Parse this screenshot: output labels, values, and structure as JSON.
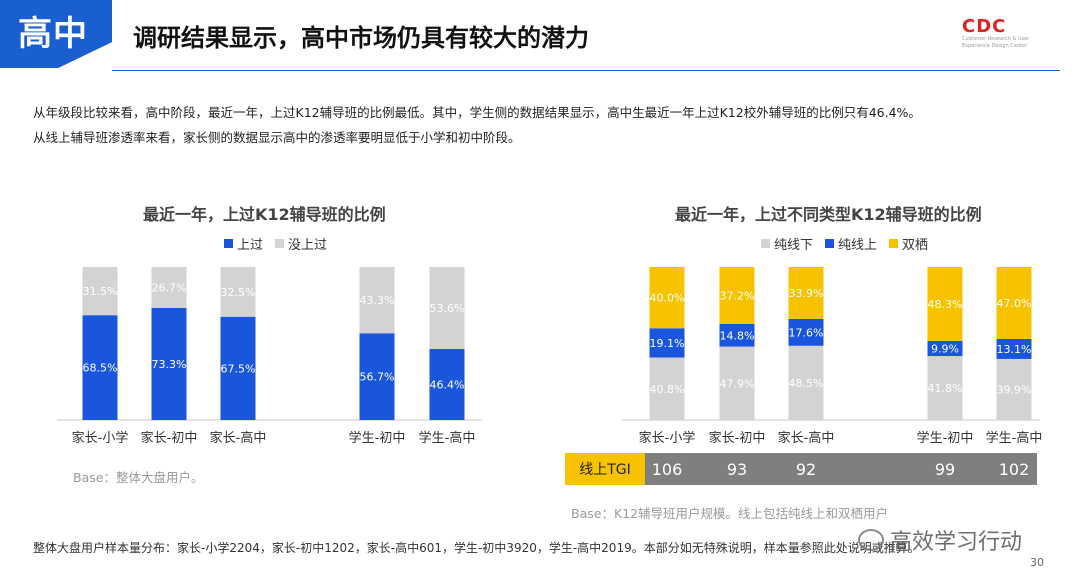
{
  "header": {
    "badge": "高中",
    "title": "调研结果显示，高中市场仍具有较大的潜力",
    "logo_text": "CDC",
    "logo_sub": "Customer Research & User Experience Design Center"
  },
  "intro": {
    "line1": "从年级段比较来看，高中阶段，最近一年，上过K12辅导班的比例最低。其中，学生侧的数据结果显示，高中生最近一年上过K12校外辅导班的比例只有46.4%。",
    "line2": "从线上辅导班渗透率来看，家长侧的数据显示高中的渗透率要明显低于小学和初中阶段。"
  },
  "chart_data": [
    {
      "type": "bar",
      "stacked": true,
      "title": "最近一年，上过K12辅导班的比例",
      "categories": [
        "家长-小学",
        "家长-初中",
        "家长-高中",
        "学生-初中",
        "学生-高中"
      ],
      "series": [
        {
          "name": "上过",
          "color": "#1a56db",
          "values": [
            68.5,
            73.3,
            67.5,
            56.7,
            46.4
          ],
          "labels": [
            "68.5%",
            "73.3%",
            "67.5%",
            "56.7%",
            "46.4%"
          ]
        },
        {
          "name": "没上过",
          "color": "#d3d3d3",
          "values": [
            31.5,
            26.7,
            32.5,
            43.3,
            53.6
          ],
          "labels": [
            "31.5%",
            "26.7%",
            "32.5%",
            "43.3%",
            "53.6%"
          ]
        }
      ],
      "legend_position": "top",
      "grid": false,
      "base_note": "Base：整体大盘用户。"
    },
    {
      "type": "bar",
      "stacked": true,
      "title": "最近一年，上过不同类型K12辅导班的比例",
      "categories": [
        "家长-小学",
        "家长-初中",
        "家长-高中",
        "学生-初中",
        "学生-高中"
      ],
      "series": [
        {
          "name": "纯线下",
          "color": "#d3d3d3",
          "values": [
            40.8,
            47.9,
            48.5,
            41.8,
            39.9
          ],
          "labels": [
            "40.8%",
            "47.9%",
            "48.5%",
            "41.8%",
            "39.9%"
          ]
        },
        {
          "name": "纯线上",
          "color": "#1a56db",
          "values": [
            19.1,
            14.8,
            17.6,
            9.9,
            13.1
          ],
          "labels": [
            "19.1%",
            "14.8%",
            "17.6%",
            "9.9%",
            "13.1%"
          ]
        },
        {
          "name": "双栖",
          "color": "#f7c200",
          "values": [
            40.0,
            37.2,
            33.9,
            48.3,
            47.0
          ],
          "labels": [
            "40.0%",
            "37.2%",
            "33.9%",
            "48.3%",
            "47.0%"
          ]
        }
      ],
      "legend_position": "top",
      "grid": false,
      "tgi_label": "线上TGI",
      "tgi_values": [
        "106",
        "93",
        "92",
        "99",
        "102"
      ],
      "base_note": "Base：K12辅导班用户规模。线上包括纯线上和双栖用户"
    }
  ],
  "footer": {
    "note": "整体大盘用户样本量分布：家长-小学2204，家长-初中1202，家长-高中601，学生-初中3920，学生-高中2019。本部分如无特殊说明，样本量参照此处说明或推算。",
    "watermark": "高效学习行动",
    "page_number": "30"
  }
}
